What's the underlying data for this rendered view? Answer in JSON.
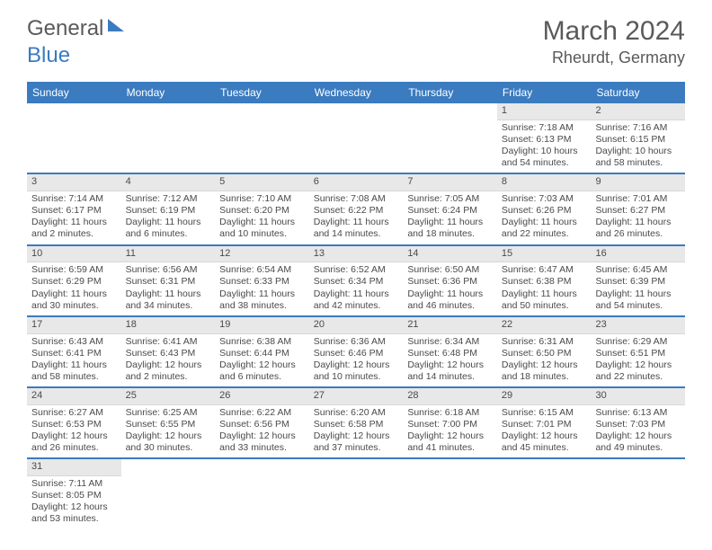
{
  "logo": {
    "text1": "General",
    "text2": "Blue"
  },
  "title": "March 2024",
  "location": "Rheurdt, Germany",
  "colors": {
    "header_bg": "#3b7bbf",
    "header_text": "#ffffff",
    "daynum_bg": "#e8e8e8",
    "border": "#3b7bbf",
    "text": "#4a4a4a",
    "background": "#ffffff"
  },
  "day_names": [
    "Sunday",
    "Monday",
    "Tuesday",
    "Wednesday",
    "Thursday",
    "Friday",
    "Saturday"
  ],
  "weeks": [
    [
      null,
      null,
      null,
      null,
      null,
      {
        "n": "1",
        "sr": "7:18 AM",
        "ss": "6:13 PM",
        "dl": "10 hours and 54 minutes."
      },
      {
        "n": "2",
        "sr": "7:16 AM",
        "ss": "6:15 PM",
        "dl": "10 hours and 58 minutes."
      }
    ],
    [
      {
        "n": "3",
        "sr": "7:14 AM",
        "ss": "6:17 PM",
        "dl": "11 hours and 2 minutes."
      },
      {
        "n": "4",
        "sr": "7:12 AM",
        "ss": "6:19 PM",
        "dl": "11 hours and 6 minutes."
      },
      {
        "n": "5",
        "sr": "7:10 AM",
        "ss": "6:20 PM",
        "dl": "11 hours and 10 minutes."
      },
      {
        "n": "6",
        "sr": "7:08 AM",
        "ss": "6:22 PM",
        "dl": "11 hours and 14 minutes."
      },
      {
        "n": "7",
        "sr": "7:05 AM",
        "ss": "6:24 PM",
        "dl": "11 hours and 18 minutes."
      },
      {
        "n": "8",
        "sr": "7:03 AM",
        "ss": "6:26 PM",
        "dl": "11 hours and 22 minutes."
      },
      {
        "n": "9",
        "sr": "7:01 AM",
        "ss": "6:27 PM",
        "dl": "11 hours and 26 minutes."
      }
    ],
    [
      {
        "n": "10",
        "sr": "6:59 AM",
        "ss": "6:29 PM",
        "dl": "11 hours and 30 minutes."
      },
      {
        "n": "11",
        "sr": "6:56 AM",
        "ss": "6:31 PM",
        "dl": "11 hours and 34 minutes."
      },
      {
        "n": "12",
        "sr": "6:54 AM",
        "ss": "6:33 PM",
        "dl": "11 hours and 38 minutes."
      },
      {
        "n": "13",
        "sr": "6:52 AM",
        "ss": "6:34 PM",
        "dl": "11 hours and 42 minutes."
      },
      {
        "n": "14",
        "sr": "6:50 AM",
        "ss": "6:36 PM",
        "dl": "11 hours and 46 minutes."
      },
      {
        "n": "15",
        "sr": "6:47 AM",
        "ss": "6:38 PM",
        "dl": "11 hours and 50 minutes."
      },
      {
        "n": "16",
        "sr": "6:45 AM",
        "ss": "6:39 PM",
        "dl": "11 hours and 54 minutes."
      }
    ],
    [
      {
        "n": "17",
        "sr": "6:43 AM",
        "ss": "6:41 PM",
        "dl": "11 hours and 58 minutes."
      },
      {
        "n": "18",
        "sr": "6:41 AM",
        "ss": "6:43 PM",
        "dl": "12 hours and 2 minutes."
      },
      {
        "n": "19",
        "sr": "6:38 AM",
        "ss": "6:44 PM",
        "dl": "12 hours and 6 minutes."
      },
      {
        "n": "20",
        "sr": "6:36 AM",
        "ss": "6:46 PM",
        "dl": "12 hours and 10 minutes."
      },
      {
        "n": "21",
        "sr": "6:34 AM",
        "ss": "6:48 PM",
        "dl": "12 hours and 14 minutes."
      },
      {
        "n": "22",
        "sr": "6:31 AM",
        "ss": "6:50 PM",
        "dl": "12 hours and 18 minutes."
      },
      {
        "n": "23",
        "sr": "6:29 AM",
        "ss": "6:51 PM",
        "dl": "12 hours and 22 minutes."
      }
    ],
    [
      {
        "n": "24",
        "sr": "6:27 AM",
        "ss": "6:53 PM",
        "dl": "12 hours and 26 minutes."
      },
      {
        "n": "25",
        "sr": "6:25 AM",
        "ss": "6:55 PM",
        "dl": "12 hours and 30 minutes."
      },
      {
        "n": "26",
        "sr": "6:22 AM",
        "ss": "6:56 PM",
        "dl": "12 hours and 33 minutes."
      },
      {
        "n": "27",
        "sr": "6:20 AM",
        "ss": "6:58 PM",
        "dl": "12 hours and 37 minutes."
      },
      {
        "n": "28",
        "sr": "6:18 AM",
        "ss": "7:00 PM",
        "dl": "12 hours and 41 minutes."
      },
      {
        "n": "29",
        "sr": "6:15 AM",
        "ss": "7:01 PM",
        "dl": "12 hours and 45 minutes."
      },
      {
        "n": "30",
        "sr": "6:13 AM",
        "ss": "7:03 PM",
        "dl": "12 hours and 49 minutes."
      }
    ],
    [
      {
        "n": "31",
        "sr": "7:11 AM",
        "ss": "8:05 PM",
        "dl": "12 hours and 53 minutes."
      },
      null,
      null,
      null,
      null,
      null,
      null
    ]
  ],
  "labels": {
    "sunrise": "Sunrise: ",
    "sunset": "Sunset: ",
    "daylight": "Daylight: "
  }
}
